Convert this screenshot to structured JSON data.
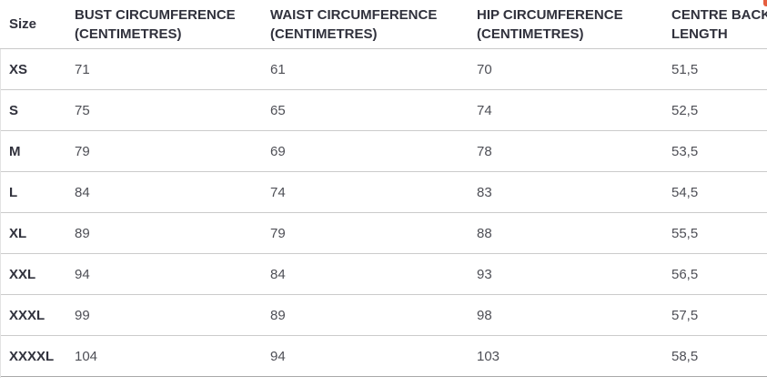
{
  "table": {
    "size_column_header": "Size",
    "columns": [
      "BUST CIRCUMFERENCE (CENTIMETRES)",
      "WAIST CIRCUMFERENCE (CENTIMETRES)",
      "HIP CIRCUMFERENCE (CENTIMETRES)",
      "CENTRE BACK LENGTH"
    ],
    "rows": [
      {
        "size": "XS",
        "values": [
          "71",
          "61",
          "70",
          "51,5"
        ]
      },
      {
        "size": "S",
        "values": [
          "75",
          "65",
          "74",
          "52,5"
        ]
      },
      {
        "size": "M",
        "values": [
          "79",
          "69",
          "78",
          "53,5"
        ]
      },
      {
        "size": "L",
        "values": [
          "84",
          "74",
          "83",
          "54,5"
        ]
      },
      {
        "size": "XL",
        "values": [
          "89",
          "79",
          "88",
          "55,5"
        ]
      },
      {
        "size": "XXL",
        "values": [
          "94",
          "84",
          "93",
          "56,5"
        ]
      },
      {
        "size": "XXXL",
        "values": [
          "99",
          "89",
          "98",
          "57,5"
        ]
      },
      {
        "size": "XXXXL",
        "values": [
          "104",
          "94",
          "103",
          "58,5"
        ]
      }
    ]
  },
  "colors": {
    "header_text": "#30313c",
    "cell_text": "#4e4f56",
    "row_divider": "#cbcbcb",
    "bottom_divider": "#a8a8a8",
    "corner_fragment": "#e55e3f"
  }
}
